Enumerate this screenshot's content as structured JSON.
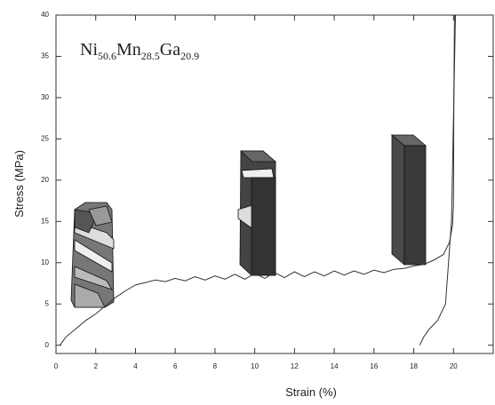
{
  "chart_data": {
    "type": "line",
    "x_label": "Strain (%)",
    "y_label": "Stress (MPa)",
    "composition": [
      {
        "element": "Ni",
        "fraction": "50.6"
      },
      {
        "element": "Mn",
        "fraction": "28.5"
      },
      {
        "element": "Ga",
        "fraction": "20.9"
      }
    ],
    "xlim": [
      0,
      22
    ],
    "xticks": [
      0,
      2,
      4,
      6,
      8,
      10,
      12,
      14,
      16,
      18,
      20
    ],
    "ylim": [
      -1,
      40
    ],
    "yticks": [
      0,
      5,
      10,
      15,
      20,
      25,
      30,
      35,
      40
    ],
    "grid": false,
    "series": [
      {
        "color": "#333333",
        "x": [
          0.2,
          0.5,
          1,
          1.5,
          2,
          2.5,
          3,
          3.5,
          4,
          4.5,
          5,
          5.5,
          6,
          6.5,
          7,
          7.5,
          8,
          8.5,
          9,
          9.5,
          10,
          10.5,
          11,
          11.5,
          12,
          12.5,
          13,
          13.5,
          14,
          14.5,
          15,
          15.5,
          16,
          16.5,
          17,
          17.5,
          18,
          18.5,
          19,
          19.5,
          19.8,
          19.95,
          20,
          20.02,
          20.05
        ],
        "values": [
          0,
          1,
          2,
          3,
          3.8,
          4.8,
          5.8,
          6.6,
          7.3,
          7.6,
          7.9,
          7.7,
          8.1,
          7.8,
          8.3,
          7.9,
          8.4,
          8,
          8.6,
          8,
          8.7,
          8.1,
          8.8,
          8.2,
          8.9,
          8.3,
          8.9,
          8.4,
          9,
          8.5,
          9,
          8.6,
          9.1,
          8.8,
          9.2,
          9.3,
          9.6,
          9.8,
          10.3,
          11,
          12.5,
          14.5,
          17,
          30,
          40
        ]
      },
      {
        "color": "#333333",
        "x": [
          18.3,
          18.5,
          18.8,
          19.2,
          19.6,
          19.9,
          20.1
        ],
        "values": [
          0,
          1,
          2,
          3,
          5,
          15,
          40
        ]
      }
    ]
  }
}
